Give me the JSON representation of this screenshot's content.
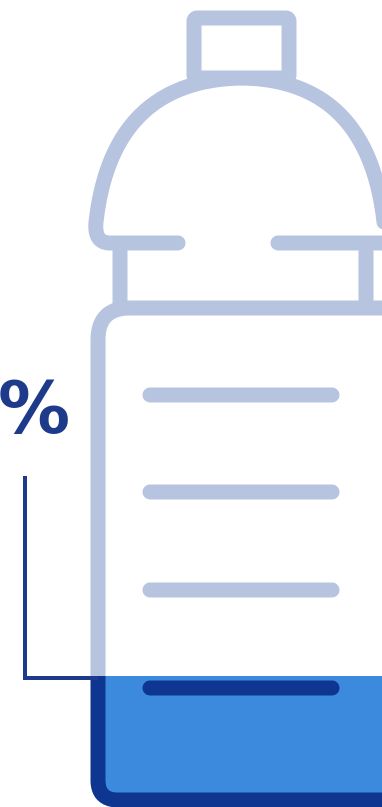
{
  "infographic": {
    "percent_label": "%"
  },
  "colors": {
    "outline": "#b6c4df",
    "fill": "#3b8ade",
    "fill_outline": "#0e3690",
    "accent_text": "#1e3a8a"
  },
  "icon": "water-bottle-icon"
}
